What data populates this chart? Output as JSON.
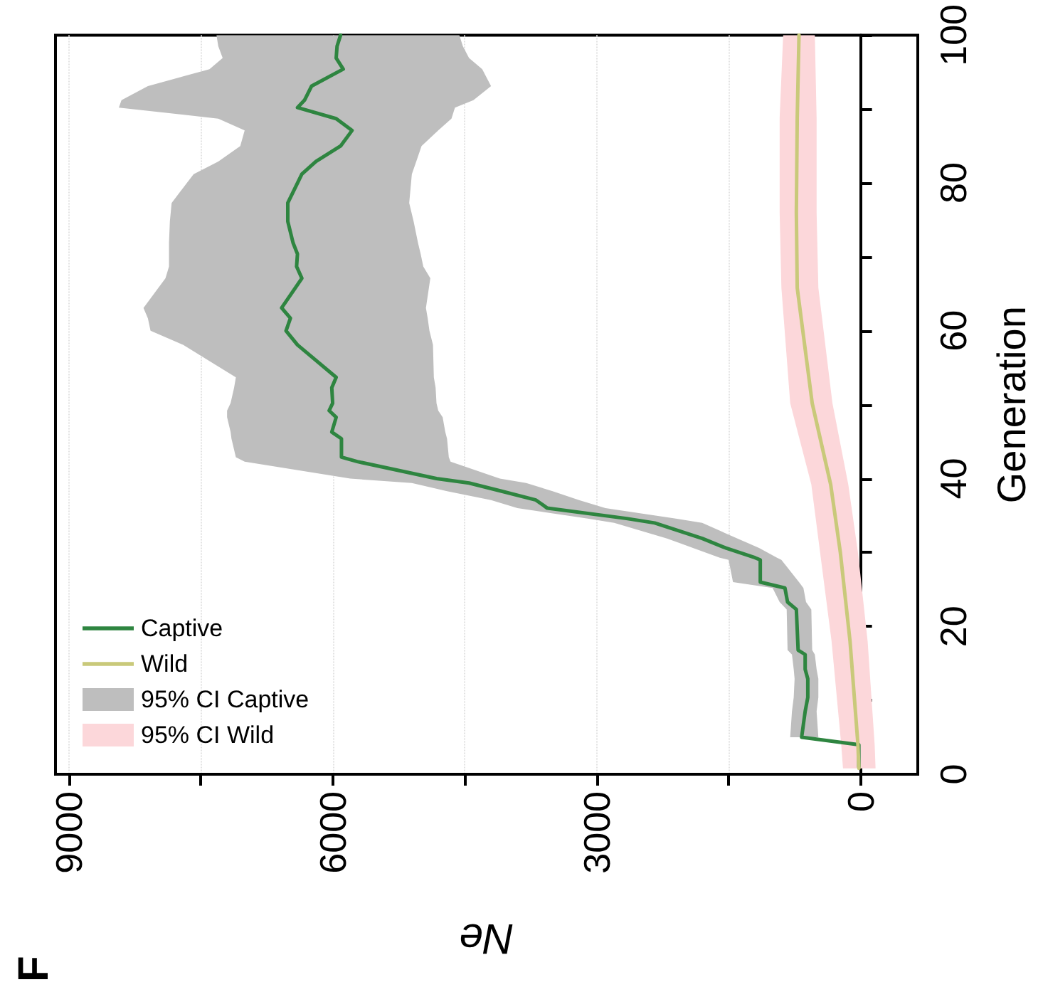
{
  "chart_data": {
    "type": "line",
    "orientation": "horizontal",
    "xlabel": "Ne",
    "ylabel": "Generation",
    "annotations": [
      "F"
    ],
    "xlim": [
      9150,
      -650
    ],
    "xticks": [
      9000,
      {
        "value": 7500,
        "label": null
      },
      6000,
      {
        "value": 4500,
        "label": null
      },
      3000,
      {
        "value": 1500,
        "label": null
      },
      0
    ],
    "ylim": [
      0,
      100
    ],
    "yticks": [
      0,
      {
        "value": 10,
        "label": null
      },
      20,
      {
        "value": 30,
        "label": null
      },
      40,
      {
        "value": 50,
        "label": null
      },
      60,
      {
        "value": 70,
        "label": null
      },
      80,
      {
        "value": 90,
        "label": null
      },
      100
    ],
    "grid": "x",
    "legend": "bottom left",
    "marker": "none",
    "series": [
      {
        "name": "Captive",
        "color": "#2e8540",
        "x": [
          1,
          4,
          5,
          8.5,
          10.4,
          12.9,
          14.2,
          16.2,
          16.8,
          22.3,
          23.3,
          25.2,
          26,
          29,
          29.3,
          30.6,
          31.9,
          34,
          34.6,
          36,
          37.1,
          38.3,
          39.4,
          40,
          42.3,
          42.9,
          45.4,
          46.3,
          48.3,
          49.2,
          50.2,
          52.3,
          53.7,
          58.1,
          60,
          61.7,
          63.1,
          67.1,
          68.7,
          70.4,
          71.9,
          74.8,
          77.3,
          81.2,
          82.9,
          85,
          87.1,
          88.7,
          90.2,
          91.2,
          93.1,
          95.4,
          96.9,
          98.5,
          100
        ],
        "values": [
          20,
          20,
          670,
          630,
          600,
          600,
          630,
          630,
          710,
          730,
          830,
          860,
          1140,
          1140,
          1200,
          1530,
          1800,
          2340,
          2660,
          3560,
          3690,
          4080,
          4450,
          4820,
          5720,
          5900,
          5900,
          6010,
          5960,
          6040,
          6000,
          6010,
          5960,
          6400,
          6530,
          6480,
          6580,
          6350,
          6410,
          6400,
          6450,
          6510,
          6510,
          6350,
          6190,
          5910,
          5780,
          5960,
          6400,
          6320,
          6240,
          5880,
          5960,
          5950,
          5910
        ]
      },
      {
        "name": "Wild",
        "color": "#c9c97a",
        "x": [
          0.8,
          4,
          18,
          30,
          39.2,
          50.2,
          65.8,
          76,
          88.8,
          100
        ],
        "values": [
          20,
          30,
          120,
          230,
          340,
          550,
          720,
          730,
          720,
          700
        ]
      },
      {
        "name": "95% CI Captive",
        "color": "#bebebe",
        "x": [
          5,
          8.5,
          10.4,
          12.9,
          14.2,
          16.2,
          16.8,
          22.3,
          23.3,
          25.2,
          26,
          29,
          29.3,
          30.6,
          31.9,
          34,
          34.6,
          36,
          37.1,
          38.3,
          39.4,
          40,
          42.3,
          42.9,
          45.4,
          46.3,
          48.3,
          49.2,
          50.2,
          52.3,
          53.7,
          58.1,
          60,
          61.7,
          63.1,
          67.1,
          68.7,
          70.4,
          71.9,
          74.8,
          77.3,
          81.2,
          82.9,
          85,
          87.1,
          88.7,
          90.2,
          91.2,
          93.1,
          95.4,
          96.9,
          98.5,
          100
        ],
        "values": [
          null,
          null,
          null,
          null,
          null,
          null,
          null,
          null,
          null,
          null,
          null,
          null,
          null,
          null,
          null,
          null,
          null,
          null,
          null,
          null,
          null,
          null,
          null,
          null,
          null,
          null,
          null,
          null,
          null,
          null,
          null,
          null,
          null,
          null,
          null,
          null,
          null,
          null,
          null,
          null,
          null,
          null,
          null,
          null,
          null,
          null,
          null,
          null,
          null,
          null,
          null,
          null,
          null
        ],
        "upper": [
          800,
          780,
          760,
          750,
          760,
          780,
          830,
          840,
          920,
          1000,
          1450,
          1500,
          1600,
          1900,
          2200,
          2800,
          3100,
          3900,
          4200,
          4700,
          5100,
          5800,
          7000,
          7100,
          7150,
          7160,
          7200,
          7200,
          7160,
          7120,
          7100,
          7700,
          8070,
          8100,
          8150,
          7900,
          7860,
          7860,
          7860,
          7850,
          7830,
          7580,
          7300,
          7050,
          7000,
          7300,
          8430,
          8400,
          8100,
          7400,
          7250,
          7300,
          7320
        ],
        "lower": [
          480,
          500,
          480,
          480,
          500,
          520,
          550,
          560,
          620,
          650,
          700,
          900,
          950,
          1150,
          1400,
          1800,
          2100,
          2900,
          3200,
          3500,
          3800,
          4100,
          4660,
          4680,
          4700,
          4720,
          4750,
          4800,
          4820,
          4830,
          4850,
          4860,
          4900,
          4920,
          4940,
          4890,
          4970,
          5000,
          5030,
          5080,
          5130,
          5100,
          5050,
          4990,
          4800,
          4650,
          4610,
          4400,
          4200,
          4300,
          4450,
          4520,
          4560
        ]
      },
      {
        "name": "95% CI Wild",
        "color": "#fcd7da",
        "x": [
          0.8,
          4,
          18,
          30,
          39.2,
          50.2,
          65.8,
          76,
          88.8,
          100
        ],
        "values": [
          null,
          null,
          null,
          null,
          null,
          null,
          null,
          null,
          null,
          null
        ],
        "upper": [
          200,
          220,
          330,
          460,
          560,
          800,
          900,
          920,
          920,
          880
        ],
        "lower": [
          -170,
          -160,
          -80,
          30,
          140,
          320,
          480,
          500,
          500,
          520
        ]
      }
    ]
  }
}
